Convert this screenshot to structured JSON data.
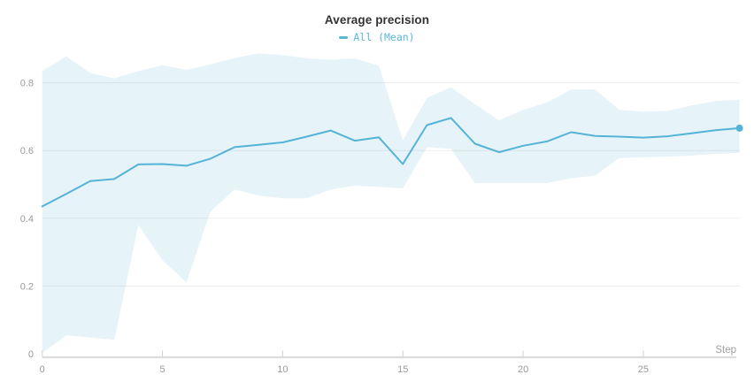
{
  "chart": {
    "title": "Average precision",
    "legend_label": "All (Mean)",
    "colors": {
      "line": "#54b3d6",
      "legend_text": "#5ab7d8",
      "band": "rgba(84,179,214,0.15)",
      "grid": "#ededed",
      "axis": "#dcdcdc",
      "tick": "#d0d0d0",
      "tick_label": "#9a9a9a",
      "axis_title": "#a0a0a0",
      "title_text": "#333333"
    }
  },
  "chart_data": {
    "type": "line",
    "title": "Average precision",
    "xlabel": "Step",
    "ylabel": "",
    "xlim": [
      0,
      29
    ],
    "ylim": [
      0,
      0.9
    ],
    "xticks": [
      0,
      5,
      10,
      15,
      20,
      25
    ],
    "yticks": [
      0,
      0.2,
      0.4,
      0.6,
      0.8
    ],
    "grid": "horizontal",
    "legend_position": "top-center",
    "series": [
      {
        "name": "All (Mean)",
        "x": [
          0,
          1,
          2,
          3,
          4,
          5,
          6,
          7,
          8,
          9,
          10,
          11,
          12,
          13,
          14,
          15,
          16,
          17,
          18,
          19,
          20,
          21,
          22,
          23,
          24,
          25,
          26,
          27,
          28,
          29
        ],
        "y": [
          0.435,
          0.472,
          0.51,
          0.516,
          0.559,
          0.56,
          0.555,
          0.576,
          0.61,
          0.617,
          0.624,
          0.641,
          0.659,
          0.629,
          0.639,
          0.56,
          0.675,
          0.696,
          0.62,
          0.595,
          0.614,
          0.627,
          0.654,
          0.643,
          0.641,
          0.638,
          0.642,
          0.651,
          0.66,
          0.666
        ],
        "band_lower": [
          0.002,
          0.054,
          0.048,
          0.041,
          0.38,
          0.276,
          0.211,
          0.42,
          0.485,
          0.467,
          0.459,
          0.459,
          0.485,
          0.496,
          0.493,
          0.488,
          0.61,
          0.605,
          0.504,
          0.504,
          0.504,
          0.504,
          0.518,
          0.526,
          0.578,
          0.58,
          0.582,
          0.585,
          0.59,
          0.593
        ],
        "band_upper": [
          0.835,
          0.878,
          0.829,
          0.813,
          0.835,
          0.852,
          0.838,
          0.854,
          0.873,
          0.887,
          0.882,
          0.872,
          0.868,
          0.872,
          0.85,
          0.63,
          0.755,
          0.787,
          0.737,
          0.689,
          0.72,
          0.742,
          0.78,
          0.78,
          0.72,
          0.715,
          0.717,
          0.733,
          0.746,
          0.75
        ],
        "last_point": {
          "x": 29,
          "y": 0.666
        }
      }
    ]
  }
}
